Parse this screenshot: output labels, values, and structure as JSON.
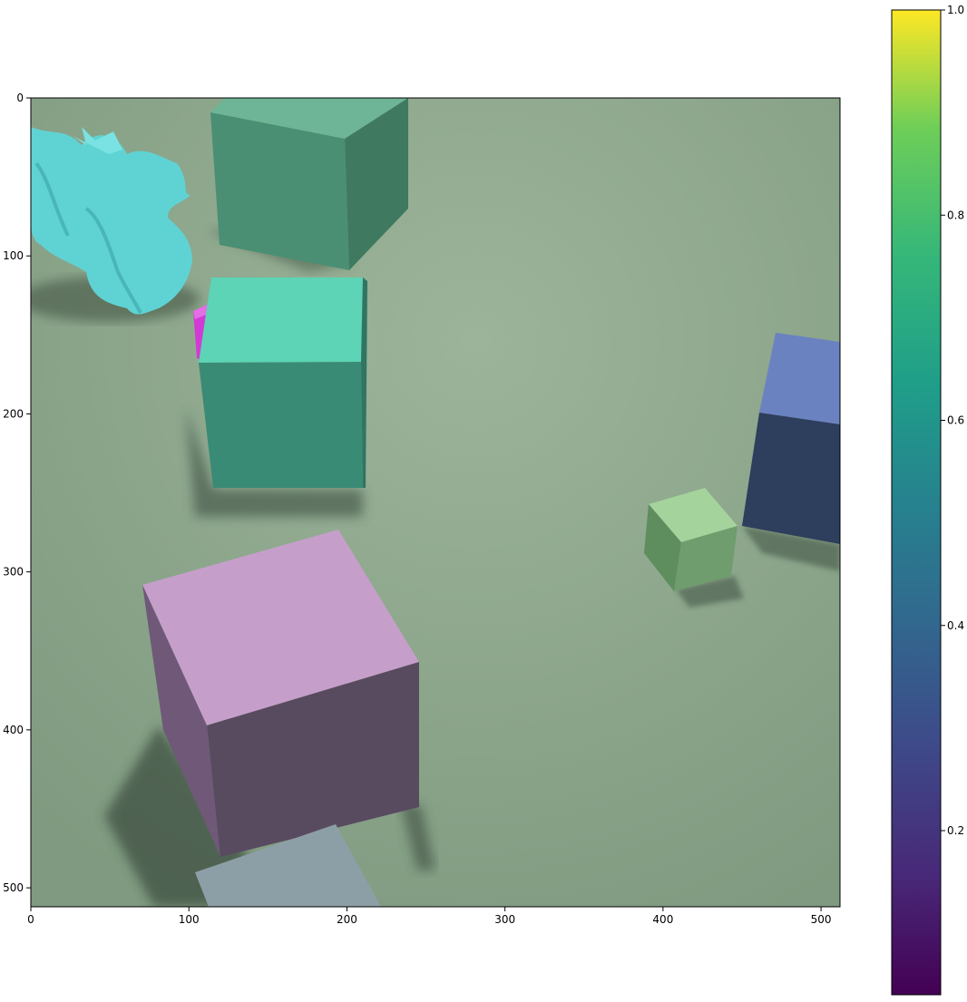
{
  "image": {
    "x_ticks": [
      "0",
      "100",
      "200",
      "300",
      "400",
      "500"
    ],
    "y_ticks": [
      "0",
      "100",
      "200",
      "300",
      "400",
      "500"
    ],
    "x_tick_values": [
      0,
      100,
      200,
      300,
      400,
      500
    ],
    "y_tick_values": [
      0,
      100,
      200,
      300,
      400,
      500
    ],
    "x_range": [
      0,
      512
    ],
    "y_range": [
      0,
      512
    ],
    "scene_objects": [
      "dragon",
      "magenta-cube",
      "cube-top-teal",
      "cube-middle-teal",
      "cube-purple",
      "cube-gray",
      "cube-green",
      "cube-blue"
    ]
  },
  "colorbar": {
    "colormap": "viridis",
    "range": [
      0.04,
      1.0
    ],
    "tick_labels": [
      "0.2",
      "0.4",
      "0.6",
      "0.8",
      "1.0"
    ],
    "tick_values": [
      0.2,
      0.4,
      0.6,
      0.8,
      1.0
    ]
  },
  "colors": {
    "floor": "#8fa58e",
    "dragon": "#5fd3d3",
    "magenta": "#d23ad6",
    "teal_top": "#6db596",
    "teal_mid": "#5cd4b5",
    "purple": "#c59fca",
    "gray": "#8d9fa6",
    "green": "#a5d39c",
    "blue": "#6b82c1"
  }
}
